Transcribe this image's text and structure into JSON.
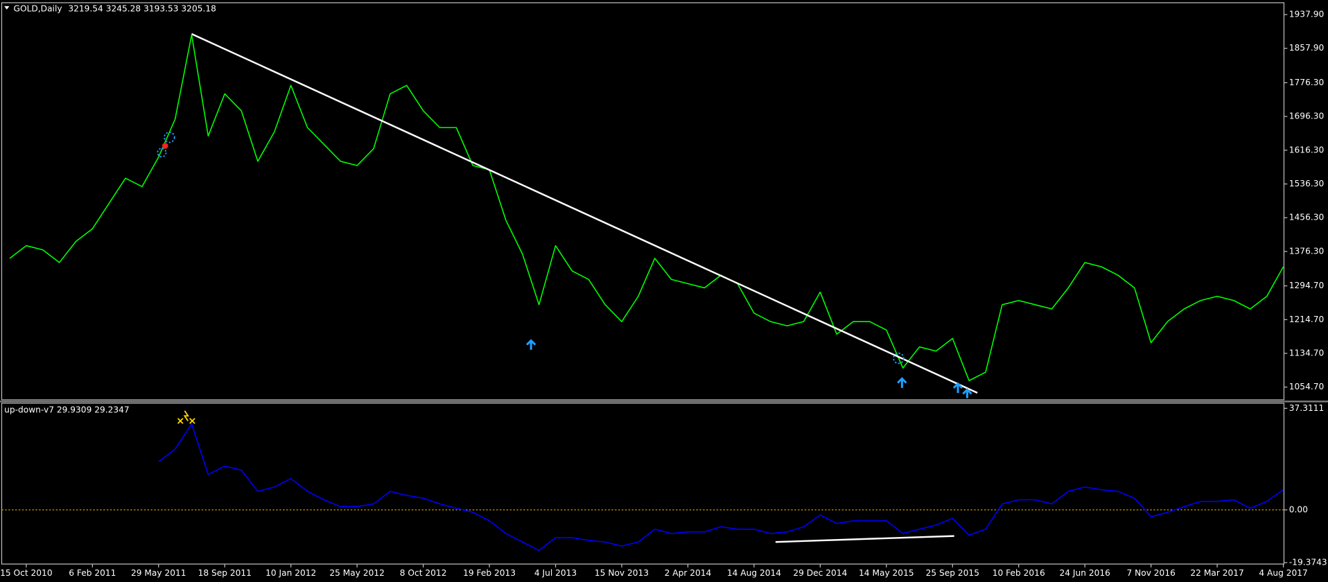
{
  "chart_data": [
    {
      "type": "line",
      "title": "GOLD,Daily",
      "ohlc": [
        3219.54,
        3245.28,
        3193.53,
        3205.18
      ],
      "color": "#00ff00",
      "categories": [
        null,
        "15 Oct 2010",
        null,
        null,
        null,
        "6 Feb 2011",
        null,
        null,
        null,
        "29 May 2011",
        null,
        null,
        null,
        "18 Sep 2011",
        null,
        null,
        null,
        "10 Jan 2012",
        null,
        null,
        null,
        "25 May 2012",
        null,
        null,
        null,
        "8 Oct 2012",
        null,
        null,
        null,
        "19 Feb 2013",
        null,
        null,
        null,
        "4 Jul 2013",
        null,
        null,
        null,
        "15 Nov 2013",
        null,
        null,
        null,
        "2 Apr 2014",
        null,
        null,
        null,
        "14 Aug 2014",
        null,
        null,
        null,
        "29 Dec 2014",
        null,
        null,
        null,
        "14 May 2015",
        null,
        null,
        null,
        "25 Sep 2015",
        null,
        null,
        null,
        "10 Feb 2016",
        null,
        null,
        null,
        "24 Jun 2016",
        null,
        null,
        null,
        "7 Nov 2016",
        null,
        null,
        null,
        "22 Mar 2017",
        null,
        null,
        null,
        "4 Aug 2017"
      ],
      "values": [
        1360,
        1390,
        1380,
        1350,
        1400,
        1430,
        1490,
        1550,
        1530,
        1600,
        1690,
        1890,
        1650,
        1750,
        1710,
        1590,
        1660,
        1770,
        1670,
        1630,
        1590,
        1580,
        1620,
        1750,
        1770,
        1710,
        1670,
        1670,
        1580,
        1570,
        1450,
        1370,
        1250,
        1390,
        1330,
        1310,
        1250,
        1210,
        1270,
        1360,
        1310,
        1300,
        1290,
        1320,
        1300,
        1230,
        1210,
        1200,
        1210,
        1280,
        1180,
        1210,
        1210,
        1190,
        1100,
        1150,
        1140,
        1170,
        1070,
        1090,
        1250,
        1260,
        1250,
        1240,
        1290,
        1350,
        1340,
        1320,
        1290,
        1160,
        1210,
        1240,
        1260,
        1270,
        1260,
        1240,
        1270,
        1340
      ],
      "ylim": [
        1024.6,
        1966
      ],
      "yticks": [
        {
          "value": 1937.9,
          "label": "1937.90"
        },
        {
          "value": 1857.9,
          "label": "1857.90"
        },
        {
          "value": 1776.3,
          "label": "1776.30"
        },
        {
          "value": 1696.3,
          "label": "1696.30"
        },
        {
          "value": 1616.3,
          "label": "1616.30"
        },
        {
          "value": 1536.3,
          "label": "1536.30"
        },
        {
          "value": 1456.3,
          "label": "1456.30"
        },
        {
          "value": 1376.3,
          "label": "1376.30"
        },
        {
          "value": 1294.7,
          "label": "1294.70"
        },
        {
          "value": 1214.7,
          "label": "1214.70"
        },
        {
          "value": 1134.7,
          "label": "1134.70"
        },
        {
          "value": 1054.7,
          "label": "1054.70"
        }
      ],
      "trendline": {
        "x": [
          11,
          58.5
        ],
        "values": [
          1892,
          1041
        ],
        "color": "#ffffff"
      }
    },
    {
      "type": "line",
      "title": "up-down-v7",
      "readings": [
        29.9309,
        29.2347
      ],
      "color": "#0000ff",
      "values": [
        null,
        null,
        null,
        null,
        null,
        null,
        null,
        null,
        null,
        17.7,
        22.3,
        31.6,
        13,
        16.1,
        14.6,
        6.8,
        8.4,
        11.5,
        6.8,
        3.7,
        1.2,
        1.2,
        2.2,
        6.8,
        5.3,
        4.3,
        2.2,
        0.6,
        -0.9,
        -4,
        -8.7,
        -11.8,
        -14.9,
        -10.2,
        -10.2,
        -11.2,
        -11.8,
        -13.3,
        -11.8,
        -7.1,
        -8.7,
        -8.1,
        -8.1,
        -6.2,
        -7.1,
        -7.1,
        -8.7,
        -8.1,
        -6.2,
        -1.9,
        -5,
        -4,
        -4,
        -4,
        -8.7,
        -7.1,
        -5.6,
        -3.1,
        -9.3,
        -7.1,
        2.2,
        3.7,
        3.7,
        2.2,
        6.8,
        8.4,
        7.4,
        6.8,
        4.3,
        -2.5,
        -0.9,
        1.2,
        3.1,
        3.1,
        3.7,
        0.6,
        3.1,
        7.4
      ],
      "ylim": [
        -19.9,
        39.2
      ],
      "yticks": [
        37.3111,
        {
          "value": 0,
          "label": "0.00"
        },
        -19.3743
      ],
      "levels": [
        0
      ],
      "trendline": {
        "x": [
          46.3,
          57.1
        ],
        "values": [
          -11.8,
          -9.6
        ],
        "color": "#ffffff"
      }
    }
  ]
}
